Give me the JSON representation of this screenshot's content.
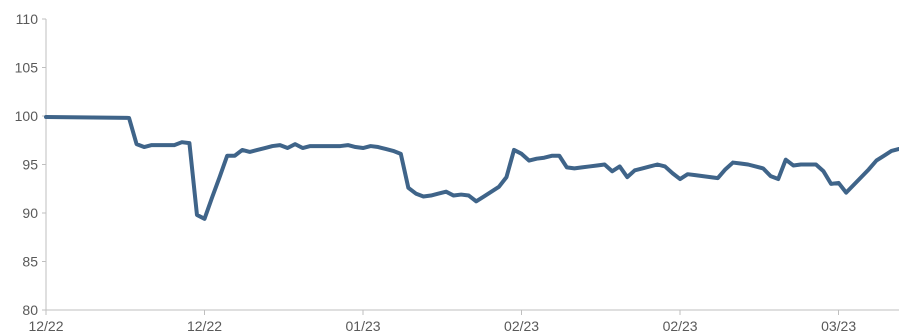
{
  "chart_data": {
    "type": "line",
    "title": "",
    "xlabel": "",
    "ylabel": "",
    "ylim": [
      80,
      110
    ],
    "yticks": [
      "80",
      "85",
      "90",
      "95",
      "100",
      "105",
      "110"
    ],
    "xlim": [
      0,
      113
    ],
    "xticks": [
      {
        "x": 0,
        "label": "12/22"
      },
      {
        "x": 21,
        "label": "12/22"
      },
      {
        "x": 42,
        "label": "01/23"
      },
      {
        "x": 63,
        "label": "02/23"
      },
      {
        "x": 84,
        "label": "02/23"
      },
      {
        "x": 105,
        "label": "03/23"
      }
    ],
    "grid": false,
    "legend": "none",
    "line_color": "#3f6489",
    "axis_color": "#bfbfbf",
    "label_color": "#595959",
    "series": [
      {
        "x": [
          0,
          11,
          12,
          13,
          14,
          15,
          16,
          17,
          18,
          19,
          20,
          21,
          22,
          23,
          24,
          25,
          26,
          27,
          28,
          29,
          30,
          31,
          32,
          33,
          34,
          35,
          36,
          37,
          38,
          39,
          40,
          41,
          42,
          43,
          44,
          45,
          46,
          47,
          48,
          49,
          50,
          51,
          52,
          53,
          54,
          55,
          56,
          57,
          58,
          59,
          60,
          61,
          62,
          63,
          64,
          65,
          66,
          67,
          68,
          69,
          70,
          71,
          72,
          73,
          74,
          75,
          76,
          77,
          78,
          79,
          80,
          81,
          82,
          83,
          84,
          85,
          86,
          87,
          88,
          89,
          90,
          91,
          92,
          93,
          94,
          95,
          96,
          97,
          98,
          99,
          100,
          101,
          102,
          103,
          104,
          105,
          106,
          107,
          108,
          109,
          110,
          111,
          112,
          113
        ],
        "values": [
          99.9,
          99.8,
          97.1,
          96.8,
          97.0,
          97.0,
          97.0,
          97.0,
          97.3,
          97.2,
          89.8,
          89.4,
          91.6,
          93.7,
          95.9,
          95.9,
          96.5,
          96.3,
          96.5,
          96.7,
          96.9,
          97.0,
          96.7,
          97.1,
          96.7,
          96.9,
          96.9,
          96.9,
          96.9,
          96.9,
          97.0,
          96.8,
          96.7,
          96.9,
          96.8,
          96.6,
          96.4,
          96.1,
          92.6,
          92.0,
          91.7,
          91.8,
          92.0,
          92.2,
          91.8,
          91.9,
          91.8,
          91.2,
          91.7,
          92.2,
          92.7,
          93.7,
          96.5,
          96.1,
          95.4,
          95.6,
          95.7,
          95.9,
          95.9,
          94.7,
          94.6,
          94.7,
          94.8,
          94.9,
          95.0,
          94.3,
          94.8,
          93.7,
          94.4,
          94.6,
          94.8,
          95.0,
          94.8,
          94.1,
          93.5,
          94.0,
          93.9,
          93.8,
          93.7,
          93.6,
          94.5,
          95.2,
          95.1,
          95.0,
          94.8,
          94.6,
          93.8,
          93.5,
          95.5,
          94.9,
          95.0,
          95.0,
          95.0,
          94.3,
          93.0,
          93.1,
          92.1,
          92.9,
          93.7,
          94.5,
          95.4,
          95.9,
          96.4,
          96.6
        ]
      }
    ]
  }
}
